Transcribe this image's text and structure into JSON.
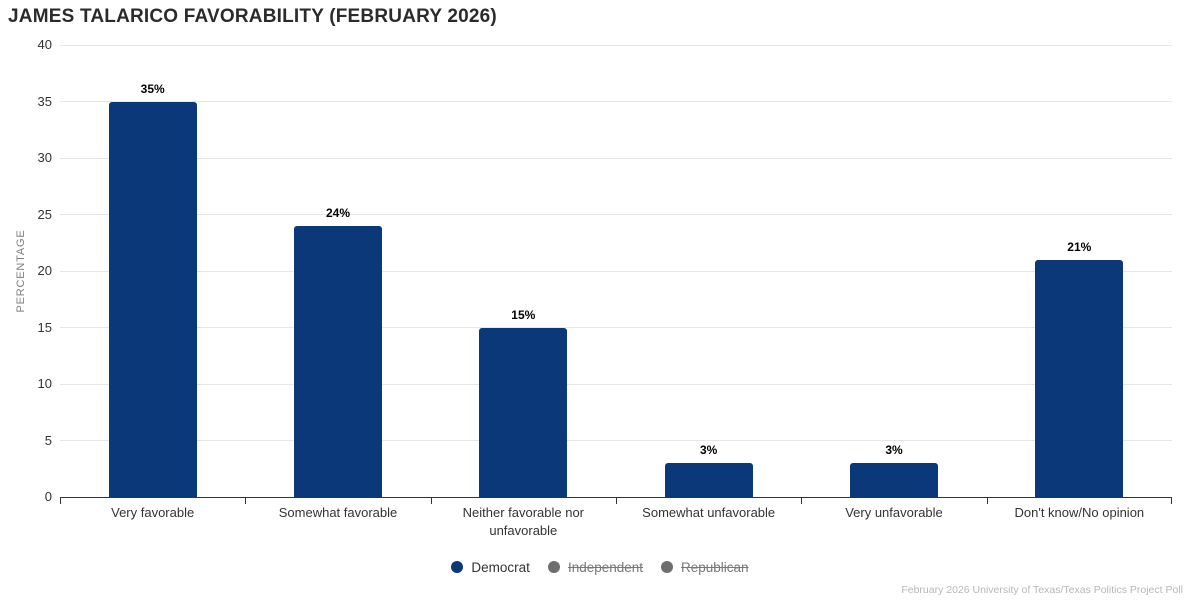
{
  "title": "JAMES TALARICO FAVORABILITY (FEBRUARY 2026)",
  "credit": "February 2026 University of Texas/Texas Politics Project Poll",
  "colors": {
    "bar": "#0a3878",
    "grid": "#e6e6e6",
    "axis": "#333333",
    "tick_text": "#333333",
    "data_label": "#000000",
    "axis_title": "#7f7f7f",
    "disabled_marker": "#6e6e6e",
    "disabled_text": "#787878",
    "credit_text": "#b8b8b8"
  },
  "chart_data": {
    "type": "bar",
    "title": "JAMES TALARICO FAVORABILITY (FEBRUARY 2026)",
    "categories": [
      "Very favorable",
      "Somewhat favorable",
      "Neither favorable nor unfavorable",
      "Somewhat unfavorable",
      "Very unfavorable",
      "Don't know/No opinion"
    ],
    "series": [
      {
        "name": "Democrat",
        "color": "#0a3878",
        "visible": true,
        "values": [
          35,
          24,
          15,
          3,
          3,
          21
        ]
      },
      {
        "name": "Independent",
        "color": "#6e6e6e",
        "visible": false
      },
      {
        "name": "Republican",
        "color": "#6e6e6e",
        "visible": false
      }
    ],
    "data_labels": [
      "35%",
      "24%",
      "15%",
      "3%",
      "3%",
      "21%"
    ],
    "xlabel": "",
    "ylabel": "PERCENTAGE",
    "ylim": [
      0,
      40
    ],
    "ytick_step": 5,
    "grid": true,
    "legend_position": "bottom"
  }
}
